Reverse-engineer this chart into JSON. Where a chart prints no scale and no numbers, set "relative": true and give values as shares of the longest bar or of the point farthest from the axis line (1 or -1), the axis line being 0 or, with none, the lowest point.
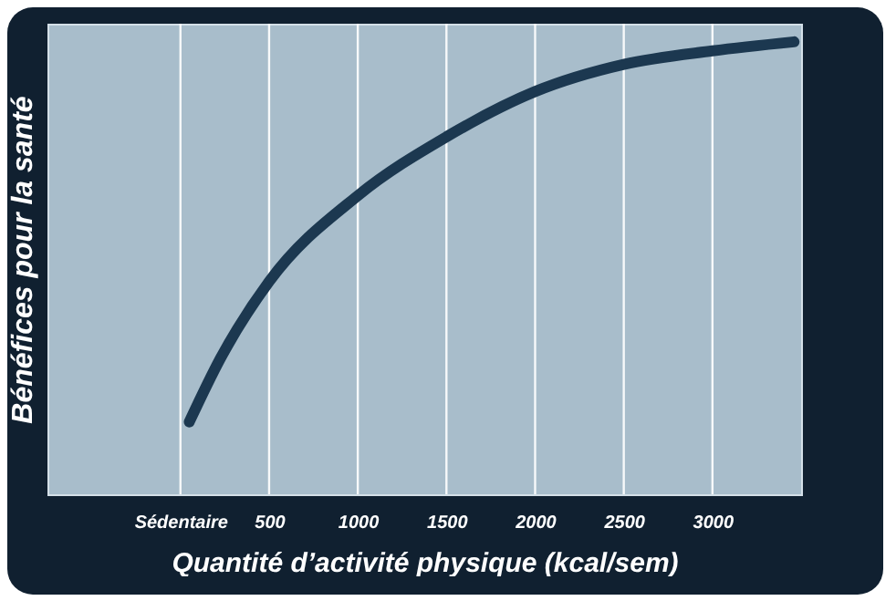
{
  "chart_data": {
    "type": "line",
    "relative": true,
    "xlabel": "Quantité d’activité physique (kcal/sem)",
    "ylabel": "Bénéfices pour la santé",
    "x": [
      50,
      225,
      500,
      1000,
      1500,
      2000,
      2500,
      3000,
      3460
    ],
    "series": [
      {
        "color": "#1c3850",
        "values": [
          0.16,
          0.3,
          0.47,
          0.66,
          0.79,
          0.89,
          0.95,
          0.98,
          1
        ]
      }
    ],
    "xlim": [
      -750,
      3500
    ],
    "xticks": [
      {
        "value": 0,
        "label": "Sédentaire"
      },
      500,
      1000,
      1500,
      2000,
      2500,
      3000
    ],
    "grid": "x",
    "marker": "none",
    "line_style": "solid"
  }
}
